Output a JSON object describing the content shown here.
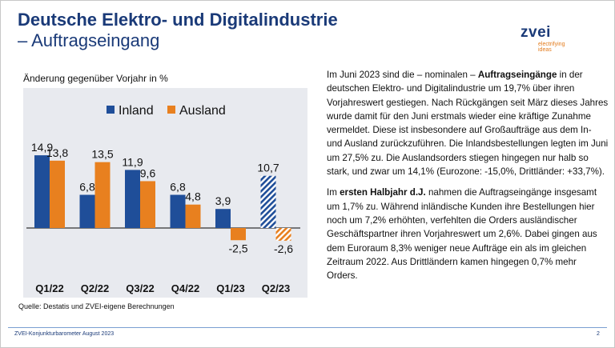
{
  "header": {
    "title_line1": "Deutsche Elektro- und Digitalindustrie",
    "title_line2": "– Auftragseingang"
  },
  "logo": {
    "wordmark": "zvei",
    "tagline": "electrifying ideas"
  },
  "chart_caption": "Änderung gegenüber Vorjahr in %",
  "source": "Quelle: Destatis und ZVEI-eigene Berechnungen",
  "colors": {
    "inland": "#1f4e99",
    "ausland": "#e8801f",
    "title": "#1a3a78",
    "background": "#e8eaef"
  },
  "chart_data": {
    "type": "bar",
    "title": "Änderung gegenüber Vorjahr in %",
    "categories": [
      "Q1/22",
      "Q2/22",
      "Q3/22",
      "Q4/22",
      "Q1/23",
      "Q2/23"
    ],
    "series": [
      {
        "name": "Inland",
        "values": [
          14.9,
          6.8,
          11.9,
          6.8,
          3.9,
          10.7
        ]
      },
      {
        "name": "Ausland",
        "values": [
          13.8,
          13.5,
          9.6,
          4.8,
          -2.5,
          -2.6
        ]
      }
    ],
    "value_labels": {
      "Inland": [
        "14,9",
        "6,8",
        "11,9",
        "6,8",
        "3,9",
        "10,7"
      ],
      "Ausland": [
        "13,8",
        "13,5",
        "9,6",
        "4,8",
        "-2,5",
        "-2,6"
      ]
    },
    "hatched_categories": [
      "Q2/23"
    ],
    "ylim": [
      -4,
      17
    ],
    "legend": "top",
    "grid": false
  },
  "paragraphs": [
    [
      {
        "t": "Im Juni 2023 sind die – nominalen – ",
        "b": false
      },
      {
        "t": "Auftragseingänge",
        "b": true
      },
      {
        "t": " in der deutschen Elektro- und Digitalindustrie um 19,7% über ihren Vorjahreswert gestiegen. Nach Rückgängen seit März dieses Jahres wurde damit für den Juni erstmals wieder eine kräftige Zunahme vermeldet. Diese ist insbesondere auf Großaufträge aus dem In- und Ausland zurückzuführen. Die Inlandsbestellungen legten im Juni um 27,5% zu. Die Auslandsorders stiegen hingegen nur halb so stark, und zwar um 14,1% (Eurozone: -15,0%, Drittländer: +33,7%).",
        "b": false
      }
    ],
    [
      {
        "t": "Im ",
        "b": false
      },
      {
        "t": "ersten Halbjahr d.J.",
        "b": true
      },
      {
        "t": " nahmen die Auftragseingänge insgesamt um 1,7% zu. Während inländische Kunden ihre Bestellungen hier noch um 7,2% erhöhten, verfehlten die Orders ausländischer Geschäftspartner ihren Vorjahreswert um 2,6%. Dabei gingen aus dem Euroraum 8,3% weniger neue Aufträge ein als im gleichen Zeitraum 2022. Aus Drittländern kamen hingegen 0,7% mehr Orders.",
        "b": false
      }
    ]
  ],
  "footer": {
    "left": "ZVEI-Konjunkturbarometer August 2023",
    "page": "2"
  }
}
